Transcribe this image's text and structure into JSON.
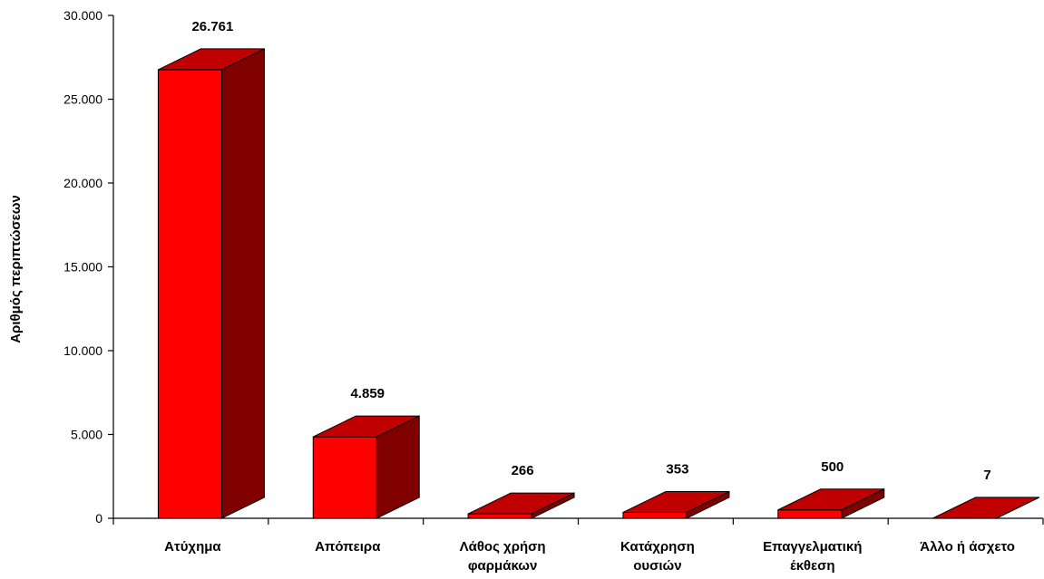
{
  "chart_data": {
    "type": "bar",
    "title": "",
    "xlabel": "",
    "ylabel": "Αριθμός περιπτώσεων",
    "ylim": [
      0,
      30000
    ],
    "yticks": [
      "0",
      "5.000",
      "10.000",
      "15.000",
      "20.000",
      "25.000",
      "30.000"
    ],
    "categories": [
      [
        "Ατύχημα"
      ],
      [
        "Απόπειρα"
      ],
      [
        "Λάθος χρήση",
        "φαρμάκων"
      ],
      [
        "Κατάχρηση",
        "ουσιών"
      ],
      [
        "Επαγγελματική",
        "έκθεση"
      ],
      [
        "Άλλο ή άσχετο"
      ]
    ],
    "values": [
      26761,
      4859,
      266,
      353,
      500,
      7
    ],
    "data_labels": [
      "26.761",
      "4.859",
      "266",
      "353",
      "500",
      "7"
    ],
    "grid": false,
    "legend": "none",
    "colors": {
      "front": "#ff0000",
      "top": "#c00000",
      "side": "#800000",
      "outline": "#000000"
    }
  }
}
